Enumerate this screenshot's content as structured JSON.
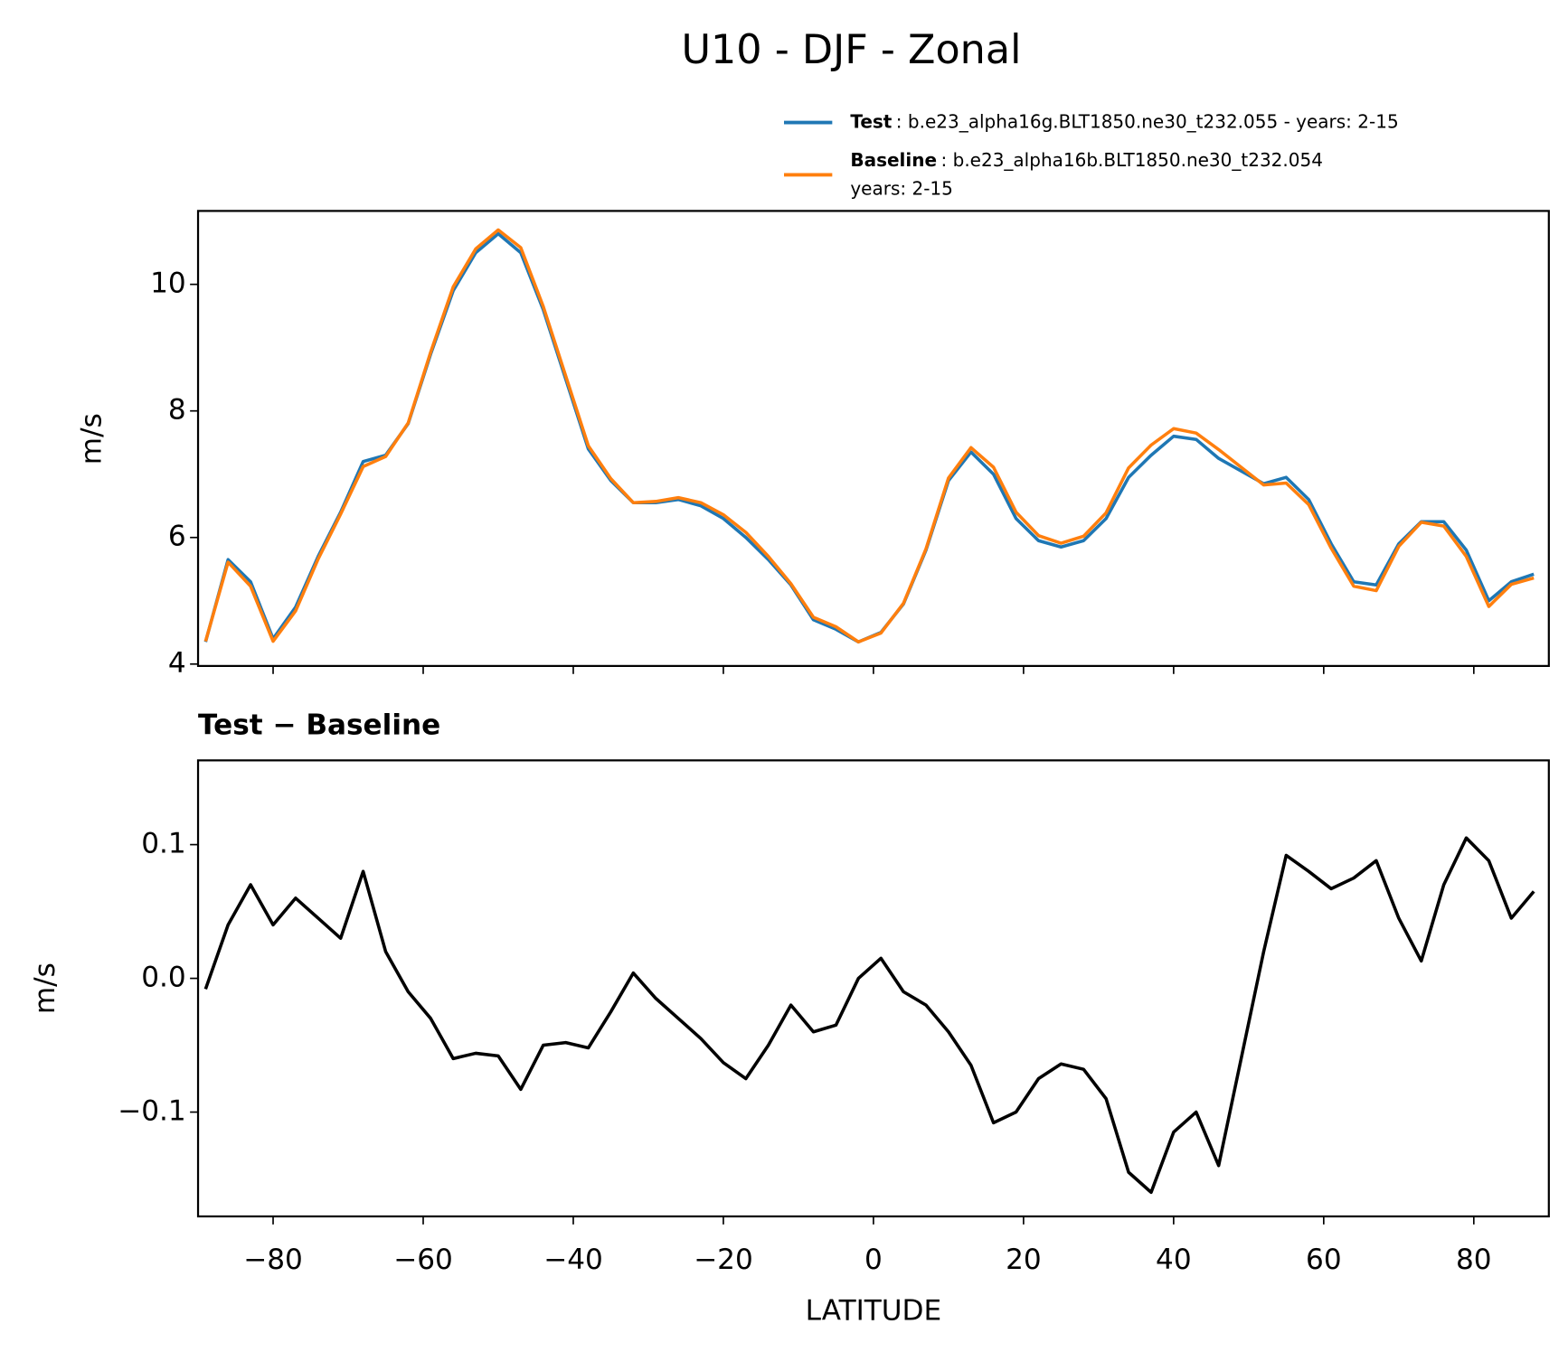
{
  "chart_data": [
    {
      "type": "line",
      "title": "U10 - DJF - Zonal",
      "ylabel": "m/s",
      "x": [
        -89,
        -86,
        -83,
        -80,
        -77,
        -74,
        -71,
        -68,
        -65,
        -62,
        -59,
        -56,
        -53,
        -50,
        -47,
        -44,
        -41,
        -38,
        -35,
        -32,
        -29,
        -26,
        -23,
        -20,
        -17,
        -14,
        -11,
        -8,
        -5,
        -2,
        1,
        4,
        7,
        10,
        13,
        16,
        19,
        22,
        25,
        28,
        31,
        34,
        37,
        40,
        43,
        46,
        49,
        52,
        55,
        58,
        61,
        64,
        67,
        70,
        73,
        76,
        79,
        82,
        85,
        88
      ],
      "series": [
        {
          "name": "Test",
          "description": [
            ": b.e23_alpha16g.BLT1850.ne30_t232.055 - years: 2-15"
          ],
          "color": "#1f77b4",
          "values": [
            4.35,
            5.65,
            5.3,
            4.4,
            4.9,
            5.7,
            6.4,
            7.2,
            7.3,
            7.8,
            8.9,
            9.9,
            10.5,
            10.8,
            10.5,
            9.6,
            8.5,
            7.4,
            6.9,
            6.55,
            6.55,
            6.6,
            6.5,
            6.3,
            6.0,
            5.65,
            5.25,
            4.7,
            4.55,
            4.35,
            4.5,
            4.95,
            5.8,
            6.9,
            7.35,
            7.0,
            6.3,
            5.95,
            5.85,
            5.95,
            6.3,
            6.95,
            7.3,
            7.6,
            7.55,
            7.25,
            7.05,
            6.85,
            6.95,
            6.6,
            5.9,
            5.3,
            5.25,
            5.9,
            6.25,
            6.25,
            5.8,
            5.0,
            5.3,
            5.42
          ]
        },
        {
          "name": "Baseline",
          "description": [
            ": b.e23_alpha16b.BLT1850.ne30_t232.054",
            "years: 2-15"
          ],
          "color": "#ff7f0e",
          "values": [
            4.36,
            5.61,
            5.23,
            4.36,
            4.84,
            5.66,
            6.37,
            7.12,
            7.28,
            7.81,
            8.93,
            9.96,
            10.56,
            10.86,
            10.58,
            9.65,
            8.55,
            7.45,
            6.93,
            6.55,
            6.57,
            6.63,
            6.55,
            6.36,
            6.08,
            5.7,
            5.27,
            4.74,
            4.59,
            4.35,
            4.49,
            4.96,
            5.82,
            6.94,
            7.42,
            7.11,
            6.4,
            6.03,
            5.91,
            6.02,
            6.39,
            7.1,
            7.46,
            7.72,
            7.65,
            7.39,
            7.11,
            6.83,
            6.86,
            6.52,
            5.83,
            5.23,
            5.16,
            5.86,
            6.24,
            6.18,
            5.7,
            4.91,
            5.26,
            5.36
          ]
        }
      ],
      "xlim": [
        -90,
        90
      ],
      "xticks": [
        -80,
        -60,
        -40,
        -20,
        0,
        20,
        40,
        60,
        80
      ],
      "ylim": [
        3.97,
        11.16
      ],
      "yticks": [
        4,
        6,
        8,
        10
      ]
    },
    {
      "type": "line",
      "title": "Test − Baseline",
      "ylabel": "m/s",
      "xlabel": "LATITUDE",
      "color": "#000000",
      "x": [
        -89,
        -86,
        -83,
        -80,
        -77,
        -74,
        -71,
        -68,
        -65,
        -62,
        -59,
        -56,
        -53,
        -50,
        -47,
        -44,
        -41,
        -38,
        -35,
        -32,
        -29,
        -26,
        -23,
        -20,
        -17,
        -14,
        -11,
        -8,
        -5,
        -2,
        1,
        4,
        7,
        10,
        13,
        16,
        19,
        22,
        25,
        28,
        31,
        34,
        37,
        40,
        43,
        46,
        49,
        52,
        55,
        58,
        61,
        64,
        67,
        70,
        73,
        76,
        79,
        82,
        85,
        88
      ],
      "values": [
        -0.008,
        0.04,
        0.07,
        0.04,
        0.06,
        0.045,
        0.03,
        0.08,
        0.02,
        -0.01,
        -0.03,
        -0.06,
        -0.056,
        -0.058,
        -0.083,
        -0.05,
        -0.048,
        -0.052,
        -0.025,
        0.004,
        -0.015,
        -0.03,
        -0.045,
        -0.063,
        -0.075,
        -0.05,
        -0.02,
        -0.04,
        -0.035,
        0.0,
        0.015,
        -0.01,
        -0.02,
        -0.04,
        -0.065,
        -0.108,
        -0.1,
        -0.075,
        -0.064,
        -0.068,
        -0.09,
        -0.145,
        -0.16,
        -0.115,
        -0.1,
        -0.14,
        -0.06,
        0.02,
        0.092,
        0.08,
        0.067,
        0.075,
        0.088,
        0.045,
        0.013,
        0.07,
        0.105,
        0.088,
        0.045,
        0.065
      ],
      "xlim": [
        -90,
        90
      ],
      "xticks": [
        {
          "value": -80,
          "label": "−80"
        },
        {
          "value": -60,
          "label": "−60"
        },
        {
          "value": -40,
          "label": "−40"
        },
        {
          "value": -20,
          "label": "−20"
        },
        0,
        20,
        40,
        60,
        80
      ],
      "ylim": [
        -0.178,
        0.163
      ],
      "yticks": [
        {
          "value": -0.1,
          "label": "−0.1"
        },
        {
          "value": 0,
          "label": "0.0"
        },
        0.1
      ]
    }
  ]
}
